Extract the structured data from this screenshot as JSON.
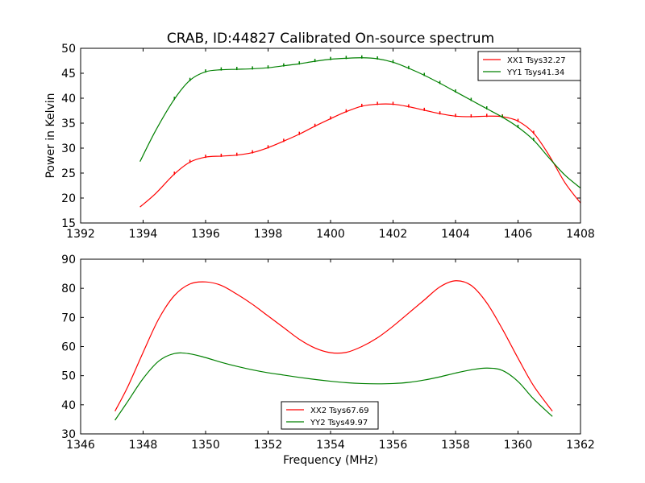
{
  "figure": {
    "title": "CRAB, ID:44827 Calibrated On-source spectrum",
    "xlabel": "Frequency (MHz)"
  },
  "chart_data": [
    {
      "type": "line",
      "title": "CRAB, ID:44827 Calibrated On-source spectrum",
      "xlabel": "",
      "ylabel": "Power in Kelvin",
      "xlim": [
        1392,
        1408
      ],
      "ylim": [
        15,
        50
      ],
      "xticks": [
        1392,
        1394,
        1396,
        1398,
        1400,
        1402,
        1404,
        1406,
        1408
      ],
      "yticks": [
        15,
        20,
        25,
        30,
        35,
        40,
        45,
        50
      ],
      "grid": false,
      "legend_position": "top-right",
      "series": [
        {
          "name": "XX1 Tsys32.27",
          "color": "#ff0000",
          "x": [
            1393.9,
            1394.4,
            1395.0,
            1395.5,
            1396.0,
            1396.5,
            1397.0,
            1397.5,
            1398.0,
            1398.5,
            1399.0,
            1399.5,
            1400.0,
            1400.5,
            1401.0,
            1401.5,
            1402.0,
            1402.5,
            1403.0,
            1403.5,
            1404.0,
            1404.5,
            1405.0,
            1405.5,
            1406.0,
            1406.5,
            1407.0,
            1407.5,
            1408.0
          ],
          "y": [
            18.2,
            20.9,
            24.8,
            27.2,
            28.2,
            28.4,
            28.6,
            29.1,
            30.1,
            31.4,
            32.8,
            34.4,
            35.9,
            37.3,
            38.4,
            38.8,
            38.8,
            38.3,
            37.6,
            36.9,
            36.4,
            36.3,
            36.4,
            36.3,
            35.4,
            33.0,
            28.5,
            23.1,
            19.0
          ]
        },
        {
          "name": "YY1 Tsys41.34",
          "color": "#008000",
          "x": [
            1393.9,
            1394.4,
            1395.0,
            1395.5,
            1396.0,
            1396.5,
            1397.0,
            1397.5,
            1398.0,
            1398.5,
            1399.0,
            1399.5,
            1400.0,
            1400.5,
            1401.0,
            1401.5,
            1402.0,
            1402.5,
            1403.0,
            1403.5,
            1404.0,
            1404.5,
            1405.0,
            1405.5,
            1406.0,
            1406.5,
            1407.0,
            1407.5,
            1408.0
          ],
          "y": [
            27.3,
            33.5,
            39.8,
            43.6,
            45.3,
            45.7,
            45.8,
            45.9,
            46.1,
            46.5,
            46.9,
            47.4,
            47.8,
            48.0,
            48.1,
            47.9,
            47.2,
            46.0,
            44.6,
            43.0,
            41.3,
            39.6,
            37.9,
            36.2,
            34.2,
            31.6,
            28.0,
            24.6,
            22.0
          ]
        }
      ]
    },
    {
      "type": "line",
      "title": "",
      "xlabel": "Frequency (MHz)",
      "ylabel": "",
      "xlim": [
        1346,
        1362
      ],
      "ylim": [
        30,
        90
      ],
      "xticks": [
        1346,
        1348,
        1350,
        1352,
        1354,
        1356,
        1358,
        1360,
        1362
      ],
      "yticks": [
        30,
        40,
        50,
        60,
        70,
        80,
        90
      ],
      "grid": false,
      "legend_position": "lower-center",
      "series": [
        {
          "name": "XX2 Tsys67.69",
          "color": "#ff0000",
          "x": [
            1347.1,
            1347.5,
            1348.0,
            1348.5,
            1349.0,
            1349.5,
            1350.0,
            1350.5,
            1351.0,
            1351.5,
            1352.0,
            1352.5,
            1353.0,
            1353.5,
            1354.0,
            1354.5,
            1355.0,
            1355.5,
            1356.0,
            1356.5,
            1357.0,
            1357.5,
            1358.0,
            1358.5,
            1359.0,
            1359.5,
            1360.0,
            1360.5,
            1361.1
          ],
          "y": [
            37.8,
            46.0,
            58.0,
            69.5,
            77.5,
            81.5,
            82.2,
            81.0,
            78.0,
            74.5,
            70.5,
            66.5,
            62.5,
            59.5,
            57.9,
            58.0,
            60.0,
            63.0,
            67.0,
            71.5,
            76.0,
            80.5,
            82.6,
            81.0,
            75.0,
            66.0,
            56.0,
            46.5,
            37.8
          ]
        },
        {
          "name": "YY2 Tsys49.97",
          "color": "#008000",
          "x": [
            1347.1,
            1347.5,
            1348.0,
            1348.5,
            1349.0,
            1349.5,
            1350.0,
            1350.5,
            1351.0,
            1351.5,
            1352.0,
            1352.5,
            1353.0,
            1353.5,
            1354.0,
            1354.5,
            1355.0,
            1355.5,
            1356.0,
            1356.5,
            1357.0,
            1357.5,
            1358.0,
            1358.5,
            1359.0,
            1359.5,
            1360.0,
            1360.5,
            1361.1
          ],
          "y": [
            34.7,
            41.0,
            49.0,
            55.0,
            57.6,
            57.5,
            56.2,
            54.6,
            53.2,
            52.0,
            51.0,
            50.2,
            49.4,
            48.7,
            48.1,
            47.6,
            47.3,
            47.2,
            47.3,
            47.7,
            48.5,
            49.6,
            50.9,
            52.0,
            52.6,
            51.8,
            48.0,
            42.0,
            36.0
          ]
        }
      ]
    }
  ]
}
